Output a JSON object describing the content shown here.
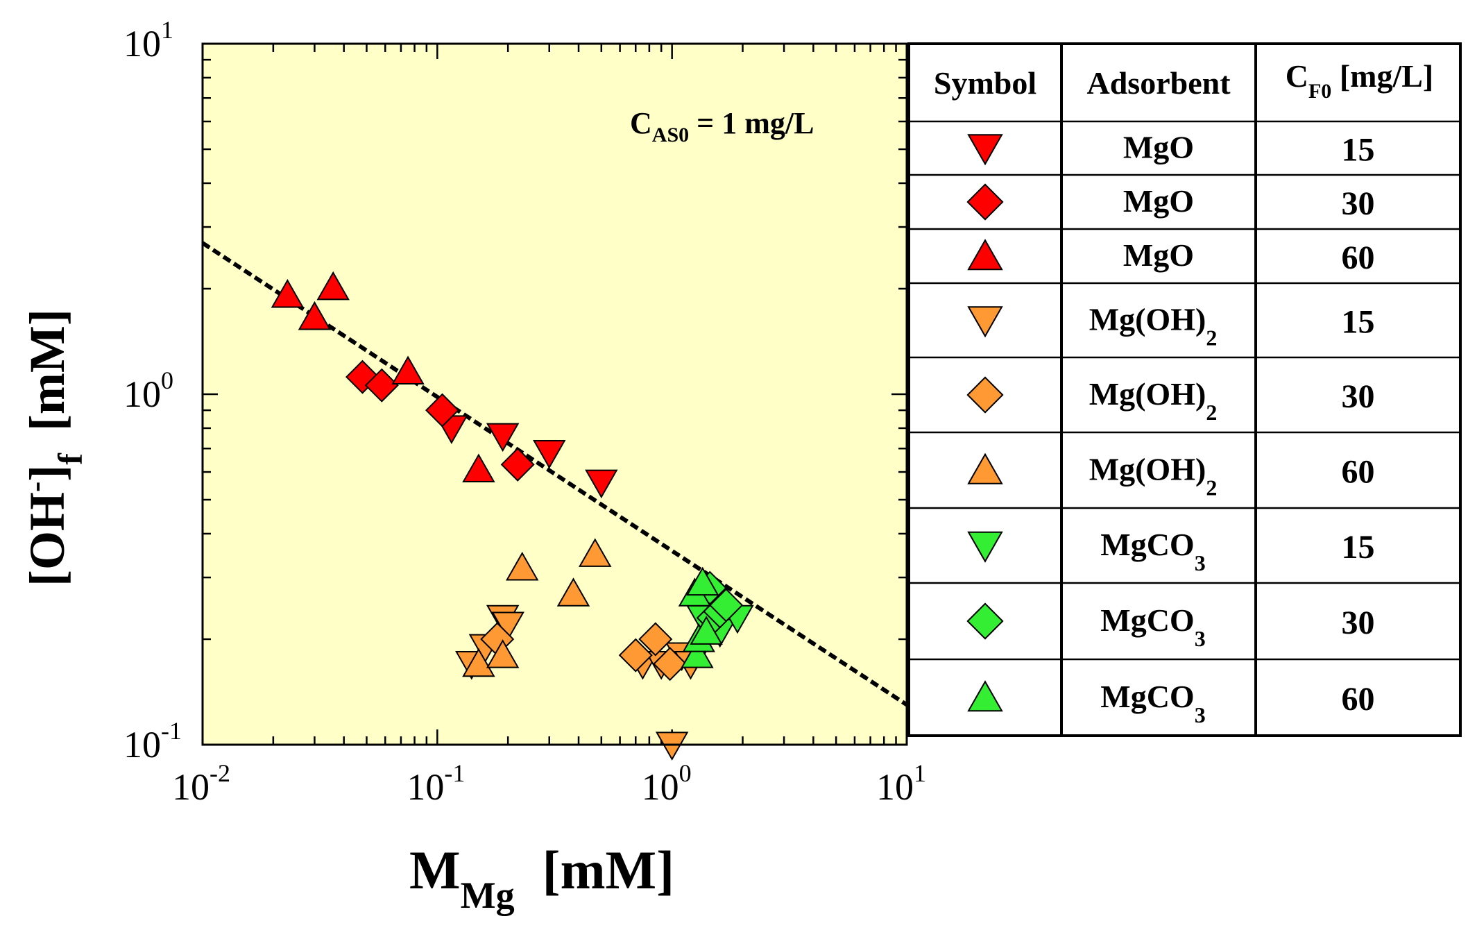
{
  "chart_data": {
    "type": "scatter",
    "title": "",
    "xscale": "log",
    "yscale": "log",
    "xlim": [
      0.01,
      10
    ],
    "ylim": [
      0.1,
      10
    ],
    "x_ticks": [
      {
        "value": 0.01,
        "base": "10",
        "exp": "-2"
      },
      {
        "value": 0.1,
        "base": "10",
        "exp": "-1"
      },
      {
        "value": 1,
        "base": "10",
        "exp": "0"
      },
      {
        "value": 10,
        "base": "10",
        "exp": "1"
      }
    ],
    "y_ticks": [
      {
        "value": 0.1,
        "base": "10",
        "exp": "-1"
      },
      {
        "value": 1,
        "base": "10",
        "exp": "0"
      },
      {
        "value": 10,
        "base": "10",
        "exp": "1"
      }
    ],
    "xlabel": {
      "main": "M",
      "sub": "Mg",
      "unit": "[mM]"
    },
    "ylabel": {
      "pre": "[OH",
      "sup": "-",
      "post": "]",
      "sub": "f",
      "unit": "[mM]"
    },
    "annotation": {
      "main": "C",
      "sub": "AS0",
      "rest": " = 1 mg/L"
    },
    "background_color": "#ffffc8",
    "fit_line": {
      "style": "dashed",
      "x": [
        0.01,
        10
      ],
      "y": [
        2.7,
        0.13
      ]
    },
    "series": [
      {
        "name": "MgO 15",
        "marker": "triangle-down",
        "color": "#ff0000",
        "points": [
          [
            0.115,
            0.8
          ],
          [
            0.19,
            0.76
          ],
          [
            0.3,
            0.68
          ],
          [
            0.5,
            0.56
          ]
        ]
      },
      {
        "name": "MgO 30",
        "marker": "diamond",
        "color": "#ff0000",
        "points": [
          [
            0.048,
            1.12
          ],
          [
            0.058,
            1.06
          ],
          [
            0.105,
            0.9
          ],
          [
            0.22,
            0.63
          ]
        ]
      },
      {
        "name": "MgO 60",
        "marker": "triangle-up",
        "color": "#ff0000",
        "points": [
          [
            0.023,
            1.92
          ],
          [
            0.03,
            1.66
          ],
          [
            0.036,
            2.02
          ],
          [
            0.075,
            1.16
          ],
          [
            0.15,
            0.61
          ]
        ]
      },
      {
        "name": "Mg(OH)2 15",
        "marker": "triangle-down",
        "color": "#ff9933",
        "points": [
          [
            0.14,
            0.17
          ],
          [
            0.16,
            0.19
          ],
          [
            0.19,
            0.23
          ],
          [
            0.2,
            0.22
          ],
          [
            0.75,
            0.17
          ],
          [
            0.9,
            0.17
          ],
          [
            1.0,
            0.1
          ],
          [
            1.1,
            0.18
          ],
          [
            1.2,
            0.17
          ]
        ]
      },
      {
        "name": "Mg(OH)2 30",
        "marker": "diamond",
        "color": "#ff9933",
        "points": [
          [
            0.18,
            0.2
          ],
          [
            0.7,
            0.18
          ],
          [
            0.85,
            0.2
          ],
          [
            0.98,
            0.17
          ]
        ]
      },
      {
        "name": "Mg(OH)2 60",
        "marker": "triangle-up",
        "color": "#ff9933",
        "points": [
          [
            0.15,
            0.17
          ],
          [
            0.19,
            0.18
          ],
          [
            0.23,
            0.32
          ],
          [
            0.38,
            0.27
          ],
          [
            0.47,
            0.35
          ]
        ]
      },
      {
        "name": "MgCO3 15",
        "marker": "triangle-down",
        "color": "#33ee33",
        "points": [
          [
            1.35,
            0.23
          ],
          [
            1.6,
            0.21
          ],
          [
            1.9,
            0.23
          ]
        ]
      },
      {
        "name": "MgCO3 30",
        "marker": "diamond",
        "color": "#33ee33",
        "points": [
          [
            1.45,
            0.28
          ],
          [
            1.5,
            0.23
          ],
          [
            1.6,
            0.24
          ],
          [
            1.7,
            0.25
          ]
        ]
      },
      {
        "name": "MgCO3 60",
        "marker": "triangle-up",
        "color": "#33ee33",
        "points": [
          [
            1.25,
            0.27
          ],
          [
            1.28,
            0.18
          ],
          [
            1.3,
            0.2
          ],
          [
            1.35,
            0.29
          ],
          [
            1.4,
            0.21
          ]
        ]
      }
    ],
    "legend": {
      "position": "right",
      "headers": {
        "symbol": "Symbol",
        "adsorbent": "Adsorbent",
        "conc_main": "C",
        "conc_sub": "F0",
        "conc_unit": " [mg/L]"
      },
      "rows": [
        {
          "marker": "triangle-down",
          "color": "#ff0000",
          "adsorbent_main": "MgO",
          "adsorbent_sub": "",
          "conc": "15"
        },
        {
          "marker": "diamond",
          "color": "#ff0000",
          "adsorbent_main": "MgO",
          "adsorbent_sub": "",
          "conc": "30"
        },
        {
          "marker": "triangle-up",
          "color": "#ff0000",
          "adsorbent_main": "MgO",
          "adsorbent_sub": "",
          "conc": "60"
        },
        {
          "marker": "triangle-down",
          "color": "#ff9933",
          "adsorbent_main": "Mg(OH)",
          "adsorbent_sub": "2",
          "conc": "15"
        },
        {
          "marker": "diamond",
          "color": "#ff9933",
          "adsorbent_main": "Mg(OH)",
          "adsorbent_sub": "2",
          "conc": "30"
        },
        {
          "marker": "triangle-up",
          "color": "#ff9933",
          "adsorbent_main": "Mg(OH)",
          "adsorbent_sub": "2",
          "conc": "60"
        },
        {
          "marker": "triangle-down",
          "color": "#33ee33",
          "adsorbent_main": "MgCO",
          "adsorbent_sub": "3",
          "conc": "15"
        },
        {
          "marker": "diamond",
          "color": "#33ee33",
          "adsorbent_main": "MgCO",
          "adsorbent_sub": "3",
          "conc": "30"
        },
        {
          "marker": "triangle-up",
          "color": "#33ee33",
          "adsorbent_main": "MgCO",
          "adsorbent_sub": "3",
          "conc": "60"
        }
      ]
    }
  }
}
